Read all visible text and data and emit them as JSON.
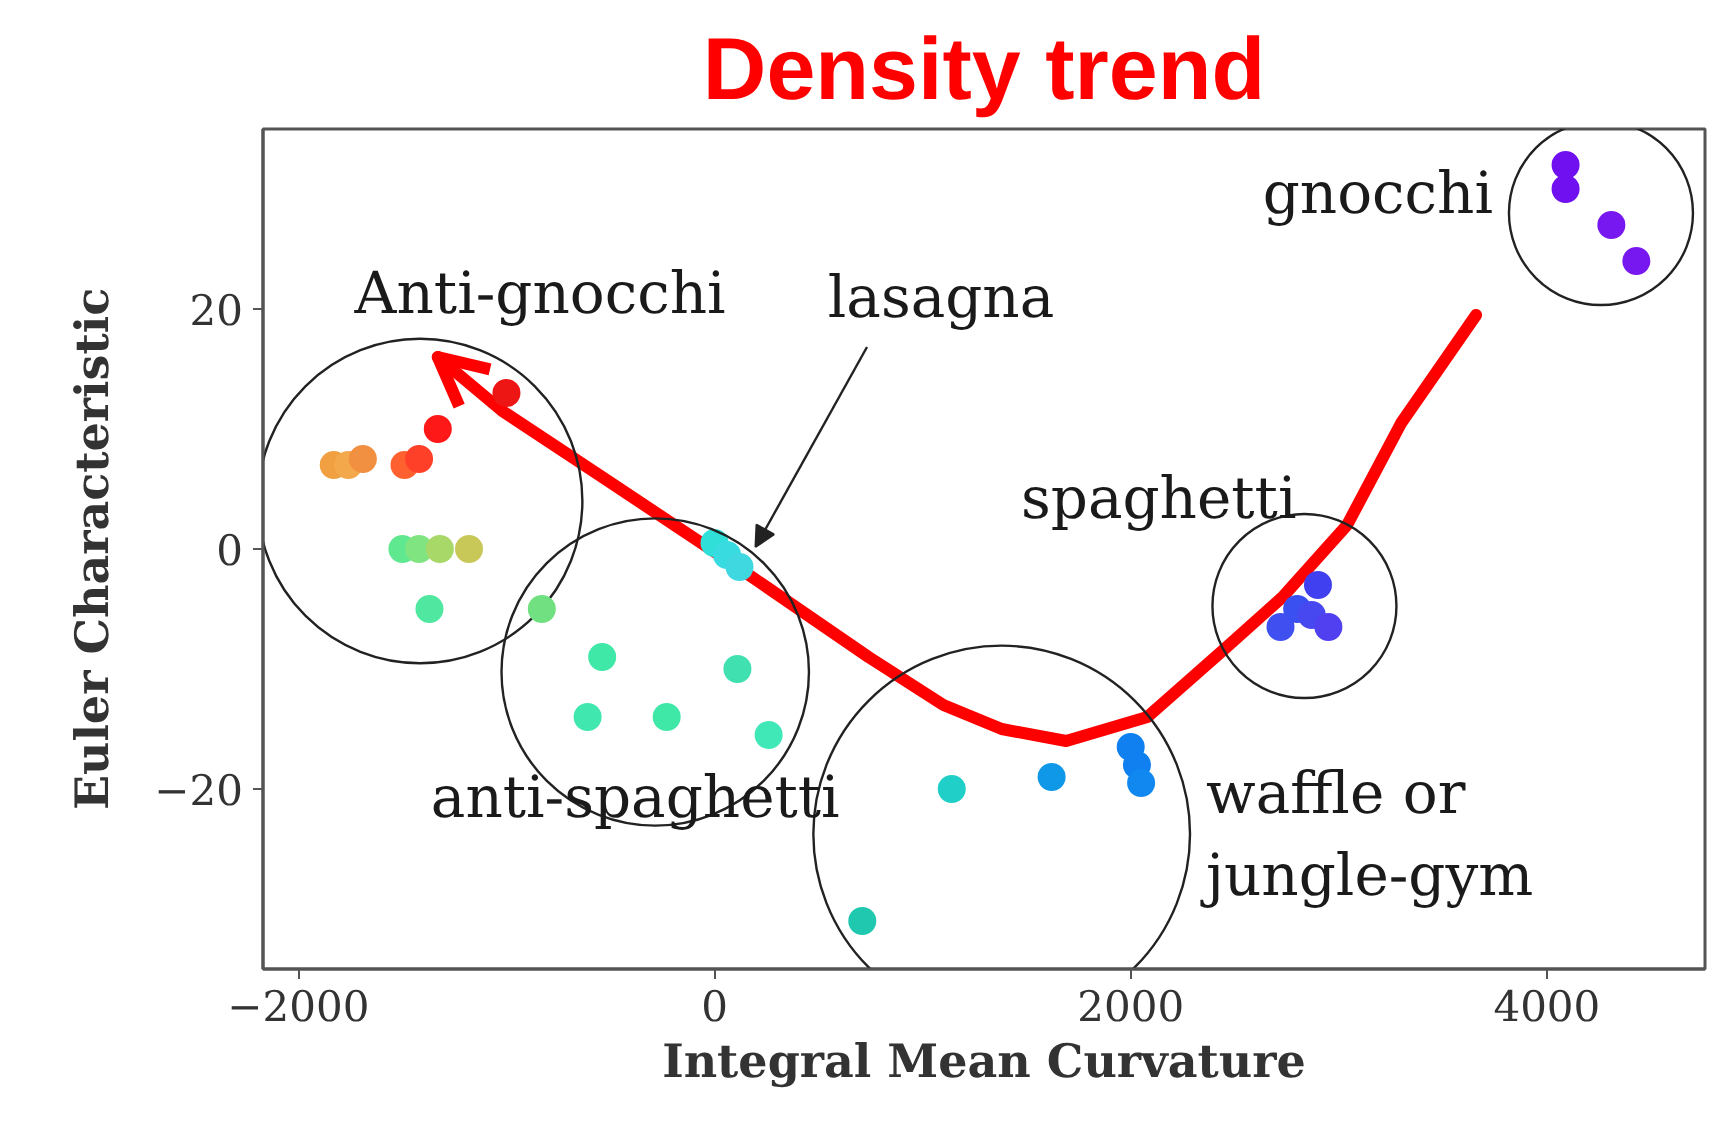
{
  "chart_data": {
    "type": "scatter",
    "xlabel": "Integral Mean Curvature",
    "ylabel": "Euler Characteristic",
    "xlim": [
      -2170,
      4760
    ],
    "ylim": [
      -35,
      35
    ],
    "xticks": [
      {
        "value": -2000,
        "label": "−2000"
      },
      0,
      2000,
      4000
    ],
    "yticks": [
      {
        "value": -20,
        "label": "−20"
      },
      0,
      20
    ],
    "grid": false,
    "marker": "circle",
    "series": [
      {
        "name": "Anti-gnocchi",
        "x": [
          -1830,
          -1760,
          -1690,
          -1490,
          -1420,
          -1330,
          -1000,
          -1500,
          -1420,
          -1320,
          -1180,
          -1370
        ],
        "values": [
          7,
          7,
          7.5,
          7,
          7.5,
          10,
          13,
          0,
          0,
          0,
          0,
          -5
        ],
        "colors": [
          "#f0a040",
          "#f4a84c",
          "#f09040",
          "#ff6030",
          "#ff4028",
          "#ff1818",
          "#ee1515",
          "#60e890",
          "#80e480",
          "#a8d868",
          "#c8c858",
          "#50e8a0"
        ]
      },
      {
        "name": "lasagna",
        "x": [
          0,
          60,
          120
        ],
        "values": [
          0.5,
          -0.5,
          -1.5
        ],
        "colors": [
          "#30e0d8",
          "#38dce0",
          "#40d8e0"
        ]
      },
      {
        "name": "anti-spaghetti",
        "x": [
          -830,
          -540,
          -610,
          -230,
          110,
          260
        ],
        "values": [
          -5,
          -9,
          -14,
          -14,
          -10,
          -15.5
        ],
        "colors": [
          "#70e080",
          "#40e8a8",
          "#40e8b0",
          "#40e8a8",
          "#40e0b0",
          "#40e8b8"
        ]
      },
      {
        "name": "waffle or\njungle-gym",
        "x": [
          710,
          1140,
          1620,
          2000,
          2030,
          2050
        ],
        "values": [
          -31,
          -20,
          -19,
          -16.5,
          -18,
          -19.5
        ],
        "colors": [
          "#20c8b0",
          "#20d0c8",
          "#1098e8",
          "#1080f0",
          "#1080f0",
          "#1088f0"
        ]
      },
      {
        "name": "spaghetti",
        "x": [
          2720,
          2800,
          2870,
          2900,
          2950
        ],
        "values": [
          -6.5,
          -5,
          -5.5,
          -3,
          -6.5
        ],
        "colors": [
          "#4050f0",
          "#3a50f0",
          "#4848f0",
          "#4040f0",
          "#5040f0"
        ]
      },
      {
        "name": "gnocchi",
        "x": [
          4090,
          4090,
          4310,
          4430
        ],
        "values": [
          32,
          30,
          27,
          24
        ],
        "colors": [
          "#7010f0",
          "#7010f0",
          "#7818f0",
          "#7818f0"
        ]
      },
      {
        "name": "Density trend",
        "type": "line",
        "marker": "none",
        "color": "#ff0000",
        "x": [
          3660,
          3300,
          3040,
          2730,
          2440,
          2080,
          1690,
          1380,
          1100,
          740,
          110,
          -540,
          -1020,
          -1330
        ],
        "values": [
          19.5,
          10.5,
          2,
          -4,
          -8.5,
          -14,
          -16,
          -15,
          -13,
          -9,
          -1.5,
          6,
          11.5,
          16
        ]
      }
    ]
  }
}
